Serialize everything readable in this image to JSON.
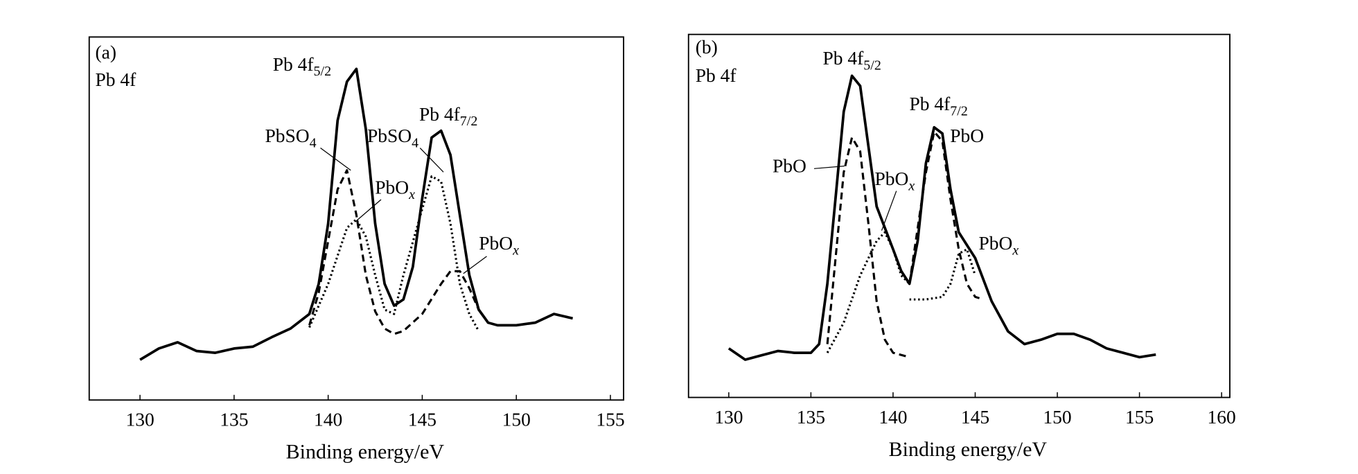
{
  "chart_data": [
    {
      "type": "line",
      "xlabel": "Binding energy/eV",
      "xlim": [
        127.3,
        155.7
      ],
      "xticks": [
        130,
        135,
        140,
        145,
        150,
        155
      ],
      "ylim": [
        0,
        100
      ],
      "series": [
        {
          "color": "#000",
          "dash": "solid",
          "width": 3,
          "x": [
            130,
            131,
            132,
            133,
            134,
            135,
            136,
            137,
            138,
            139,
            139.5,
            140,
            140.5,
            141,
            141.5,
            142,
            142.5,
            143,
            143.5,
            144,
            144.5,
            145,
            145.5,
            146,
            146.5,
            147,
            147.5,
            148,
            148.5,
            149,
            150,
            151,
            152,
            153
          ],
          "values": [
            11.1,
            14.2,
            15.9,
            13.5,
            13,
            14.2,
            14.7,
            17.3,
            19.7,
            23.7,
            32,
            48.6,
            77,
            87.7,
            91.2,
            74.6,
            48.6,
            32,
            26,
            27.7,
            36.7,
            55.5,
            72.3,
            74.2,
            67.5,
            50.9,
            34.4,
            24.9,
            21.3,
            20.6,
            20.6,
            21.3,
            23.7,
            22.5
          ]
        },
        {
          "color": "#000",
          "dash": "dashed",
          "width": 2.5,
          "x": [
            139,
            139.5,
            140,
            140.5,
            141,
            141.5,
            142,
            142.5,
            143,
            143.5,
            144,
            145,
            146,
            146.5,
            147,
            147.5,
            148
          ],
          "values": [
            20.6,
            29.6,
            43.8,
            58,
            63.3,
            51,
            34.4,
            24.4,
            19.7,
            18.2,
            19,
            23.7,
            32,
            35.5,
            35.5,
            30.8,
            24.9
          ]
        },
        {
          "color": "#000",
          "dash": "dotted",
          "width": 2.5,
          "x": [
            139,
            140,
            141,
            141.5,
            142,
            142.5,
            143,
            143.5,
            144,
            145,
            145.5,
            146,
            146.5,
            147,
            147.5,
            148
          ],
          "values": [
            20,
            32,
            47.4,
            49.8,
            45,
            34.4,
            24.9,
            23.7,
            34.4,
            52.6,
            61.6,
            60.2,
            48.6,
            32,
            23.7,
            19
          ]
        }
      ],
      "annotations": [
        {
          "text": "(a)"
        },
        {
          "text": "Pb 4f"
        },
        {
          "text": "Pb 4f",
          "sub": "5/2"
        },
        {
          "text": "PbSO",
          "sub": "4"
        },
        {
          "text": "PbSO",
          "sub": "4"
        },
        {
          "text": "PbO",
          "sub": "x",
          "sub_italic": true
        },
        {
          "text": "Pb 4f",
          "sub": "7/2"
        },
        {
          "text": "PbO",
          "sub": "x",
          "sub_italic": true
        }
      ]
    },
    {
      "type": "line",
      "xlabel": "Binding energy/eV",
      "xlim": [
        127.55,
        160.5
      ],
      "xticks": [
        130,
        135,
        140,
        145,
        150,
        155,
        160
      ],
      "ylim": [
        0,
        100
      ],
      "series": [
        {
          "color": "#000",
          "dash": "solid",
          "width": 3,
          "x": [
            130,
            131,
            132,
            133,
            134,
            135,
            135.5,
            136,
            136.5,
            137,
            137.5,
            138,
            138.5,
            139,
            139.5,
            140,
            140.5,
            141,
            141.5,
            142,
            142.5,
            143,
            143.5,
            144,
            145,
            146,
            147,
            148,
            149,
            150,
            151,
            152,
            153,
            154,
            155,
            156
          ],
          "values": [
            13.5,
            10.4,
            11.6,
            12.8,
            12.3,
            12.3,
            14.7,
            31.3,
            55,
            78.7,
            88.6,
            85.8,
            69.2,
            52.6,
            46.7,
            40.8,
            34.8,
            31.3,
            43.1,
            64.5,
            74.4,
            72.7,
            57.3,
            45.5,
            38.4,
            26.5,
            18.2,
            14.7,
            15.9,
            17.5,
            17.5,
            15.9,
            13.5,
            12.3,
            11.1,
            11.8
          ]
        },
        {
          "color": "#000",
          "dash": "dashed",
          "width": 2.5,
          "x": [
            136,
            136.5,
            137,
            137.5,
            138,
            138.5,
            139,
            139.5,
            140,
            141
          ],
          "values": [
            14.7,
            38.4,
            62,
            71.6,
            67.8,
            47.9,
            26.5,
            15.9,
            12.3,
            11.1
          ]
        },
        {
          "color": "#000",
          "dash": "dashed",
          "width": 2.5,
          "x": [
            141,
            142,
            142.5,
            143,
            143.5,
            144,
            144.5,
            145,
            145.5
          ],
          "values": [
            31.3,
            62,
            73.2,
            70.6,
            54.5,
            40.8,
            31.3,
            27.7,
            27
          ]
        },
        {
          "color": "#000",
          "dash": "dotted",
          "width": 2.5,
          "x": [
            136,
            137,
            138,
            139,
            139.5,
            140,
            140.5,
            141
          ],
          "values": [
            12.3,
            20.6,
            33.6,
            43.1,
            45.5,
            40.8,
            33.6,
            31.3
          ]
        },
        {
          "color": "#000",
          "dash": "dotted",
          "width": 2.5,
          "x": [
            141,
            142,
            143,
            143.5,
            144,
            144.5,
            145
          ],
          "values": [
            27,
            27,
            27.7,
            31.3,
            39.6,
            40.8,
            33.6
          ]
        }
      ],
      "annotations": [
        {
          "text": "(b)"
        },
        {
          "text": "Pb 4f"
        },
        {
          "text": "Pb 4f",
          "sub": "5/2"
        },
        {
          "text": "PbO"
        },
        {
          "text": "PbO",
          "sub": "x",
          "sub_italic": true
        },
        {
          "text": "Pb 4f",
          "sub": "7/2"
        },
        {
          "text": "PbO"
        },
        {
          "text": "PbO",
          "sub": "x",
          "sub_italic": true
        }
      ]
    }
  ]
}
